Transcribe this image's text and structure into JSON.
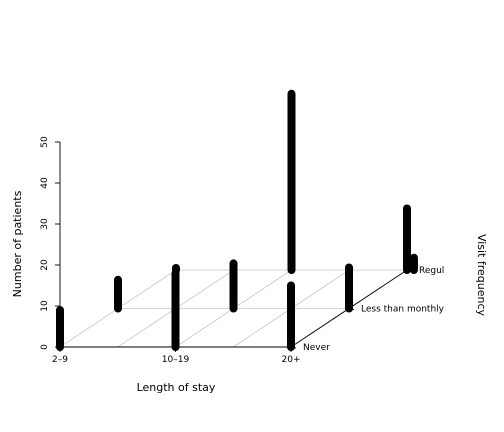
{
  "chart_data": {
    "type": "bar",
    "subtype": "3d-scatter-histogram",
    "title": "",
    "xlabel": "Length of stay",
    "ylabel": "Visit frequency",
    "zlabel": "Number of patients",
    "x_categories": [
      "2–9",
      "10–19",
      "20+"
    ],
    "y_categories": [
      "Never",
      "Less than monthly",
      "Regul"
    ],
    "zlim": [
      0,
      55
    ],
    "z_ticks": [
      0,
      10,
      20,
      30,
      40,
      50
    ],
    "grid": true,
    "points": [
      {
        "x": "2–9",
        "y": "Never",
        "z": 9
      },
      {
        "x": "2–9",
        "y": "Less than monthly",
        "z": 7
      },
      {
        "x": "2–9",
        "y": "Regul",
        "z": 0
      },
      {
        "x": "10–19",
        "y": "Never",
        "z": 18
      },
      {
        "x": "10–19",
        "y": "Less than monthly",
        "z": 11
      },
      {
        "x": "10–19",
        "y": "Regul",
        "z": 43
      },
      {
        "x": "20+",
        "y": "Never",
        "z": 15
      },
      {
        "x": "20+",
        "y": "Less than monthly",
        "z": 10
      },
      {
        "x": "20+",
        "y": "Regul",
        "z": 15
      },
      {
        "x": "20+",
        "y": "Regul",
        "z": 3,
        "position": "right-edge"
      }
    ]
  }
}
